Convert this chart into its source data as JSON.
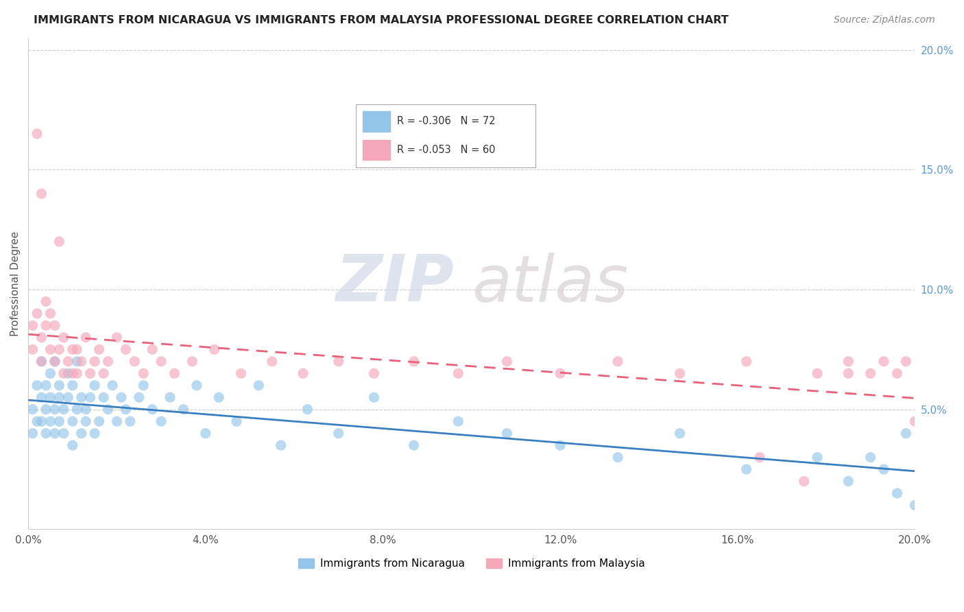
{
  "title": "IMMIGRANTS FROM NICARAGUA VS IMMIGRANTS FROM MALAYSIA PROFESSIONAL DEGREE CORRELATION CHART",
  "source": "Source: ZipAtlas.com",
  "ylabel": "Professional Degree",
  "legend_nicaragua": "Immigrants from Nicaragua",
  "legend_malaysia": "Immigrants from Malaysia",
  "r_nicaragua": -0.306,
  "n_nicaragua": 72,
  "r_malaysia": -0.053,
  "n_malaysia": 60,
  "color_nicaragua": "#92c5e8",
  "color_malaysia": "#f4a7b9",
  "color_nicaragua_line": "#3a7fc1",
  "color_malaysia_line": "#e8607a",
  "xmin": 0.0,
  "xmax": 0.2,
  "ymin": 0.0,
  "ymax": 0.205,
  "watermark_zip": "ZIP",
  "watermark_atlas": "atlas",
  "nicaragua_x": [
    0.001,
    0.001,
    0.002,
    0.002,
    0.003,
    0.003,
    0.003,
    0.004,
    0.004,
    0.004,
    0.005,
    0.005,
    0.005,
    0.006,
    0.006,
    0.006,
    0.007,
    0.007,
    0.007,
    0.008,
    0.008,
    0.009,
    0.009,
    0.01,
    0.01,
    0.01,
    0.011,
    0.011,
    0.012,
    0.012,
    0.013,
    0.013,
    0.014,
    0.015,
    0.015,
    0.016,
    0.017,
    0.018,
    0.019,
    0.02,
    0.021,
    0.022,
    0.023,
    0.025,
    0.026,
    0.028,
    0.03,
    0.032,
    0.035,
    0.038,
    0.04,
    0.043,
    0.047,
    0.052,
    0.057,
    0.063,
    0.07,
    0.078,
    0.087,
    0.097,
    0.108,
    0.12,
    0.133,
    0.147,
    0.162,
    0.178,
    0.185,
    0.19,
    0.193,
    0.196,
    0.198,
    0.2
  ],
  "nicaragua_y": [
    0.05,
    0.04,
    0.045,
    0.06,
    0.055,
    0.045,
    0.07,
    0.05,
    0.06,
    0.04,
    0.065,
    0.045,
    0.055,
    0.05,
    0.07,
    0.04,
    0.055,
    0.045,
    0.06,
    0.05,
    0.04,
    0.055,
    0.065,
    0.045,
    0.06,
    0.035,
    0.05,
    0.07,
    0.04,
    0.055,
    0.05,
    0.045,
    0.055,
    0.04,
    0.06,
    0.045,
    0.055,
    0.05,
    0.06,
    0.045,
    0.055,
    0.05,
    0.045,
    0.055,
    0.06,
    0.05,
    0.045,
    0.055,
    0.05,
    0.06,
    0.04,
    0.055,
    0.045,
    0.06,
    0.035,
    0.05,
    0.04,
    0.055,
    0.035,
    0.045,
    0.04,
    0.035,
    0.03,
    0.04,
    0.025,
    0.03,
    0.02,
    0.03,
    0.025,
    0.015,
    0.04,
    0.01
  ],
  "malaysia_x": [
    0.001,
    0.001,
    0.002,
    0.002,
    0.003,
    0.003,
    0.003,
    0.004,
    0.004,
    0.005,
    0.005,
    0.006,
    0.006,
    0.007,
    0.007,
    0.008,
    0.008,
    0.009,
    0.01,
    0.01,
    0.011,
    0.011,
    0.012,
    0.013,
    0.014,
    0.015,
    0.016,
    0.017,
    0.018,
    0.02,
    0.022,
    0.024,
    0.026,
    0.028,
    0.03,
    0.033,
    0.037,
    0.042,
    0.048,
    0.055,
    0.062,
    0.07,
    0.078,
    0.087,
    0.097,
    0.108,
    0.12,
    0.133,
    0.147,
    0.162,
    0.178,
    0.185,
    0.19,
    0.193,
    0.196,
    0.198,
    0.2,
    0.185,
    0.175,
    0.165
  ],
  "malaysia_y": [
    0.085,
    0.075,
    0.165,
    0.09,
    0.08,
    0.07,
    0.14,
    0.095,
    0.085,
    0.09,
    0.075,
    0.085,
    0.07,
    0.12,
    0.075,
    0.08,
    0.065,
    0.07,
    0.075,
    0.065,
    0.075,
    0.065,
    0.07,
    0.08,
    0.065,
    0.07,
    0.075,
    0.065,
    0.07,
    0.08,
    0.075,
    0.07,
    0.065,
    0.075,
    0.07,
    0.065,
    0.07,
    0.075,
    0.065,
    0.07,
    0.065,
    0.07,
    0.065,
    0.07,
    0.065,
    0.07,
    0.065,
    0.07,
    0.065,
    0.07,
    0.065,
    0.07,
    0.065,
    0.07,
    0.065,
    0.07,
    0.045,
    0.065,
    0.02,
    0.03
  ]
}
